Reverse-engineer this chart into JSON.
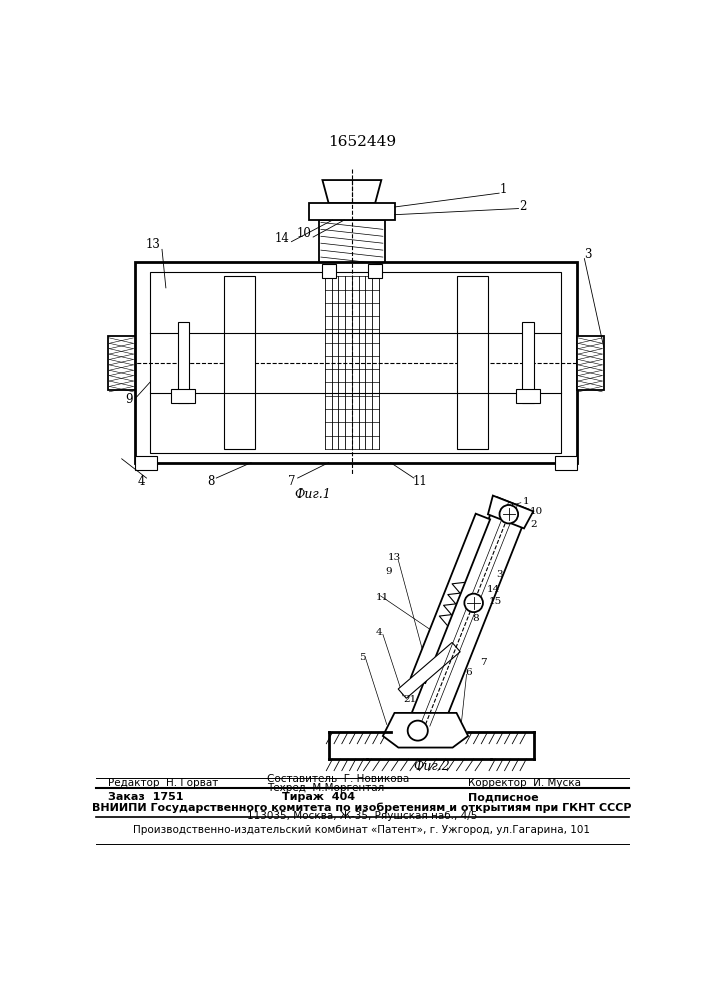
{
  "patent_number": "1652449",
  "fig1_caption": "Фиг.1",
  "fig2_caption": "Фиг.2",
  "footer_line1_left": "Редактор  Н. Горват",
  "footer_line1_mid": "Составитель  Г. Новикова",
  "footer_line1_mid2": "Техред  М.Моргентал",
  "footer_line1_right": "Корректор  И. Муска",
  "footer_bold_left": "Заказ  1751",
  "footer_bold_mid": "Тираж  404",
  "footer_bold_right": "Подписное",
  "footer_vnipi": "ВНИИПИ Государственного комитета по изобретениям и открытиям при ГКНТ СССР",
  "footer_address": "113035, Москва, Ж-35, Ряушская наб., 4/5",
  "footer_publisher": "Производственно-издательский комбинат «Патент», г. Ужгород, ул.Гагарина, 101",
  "bg_color": "#ffffff",
  "line_color": "#000000"
}
